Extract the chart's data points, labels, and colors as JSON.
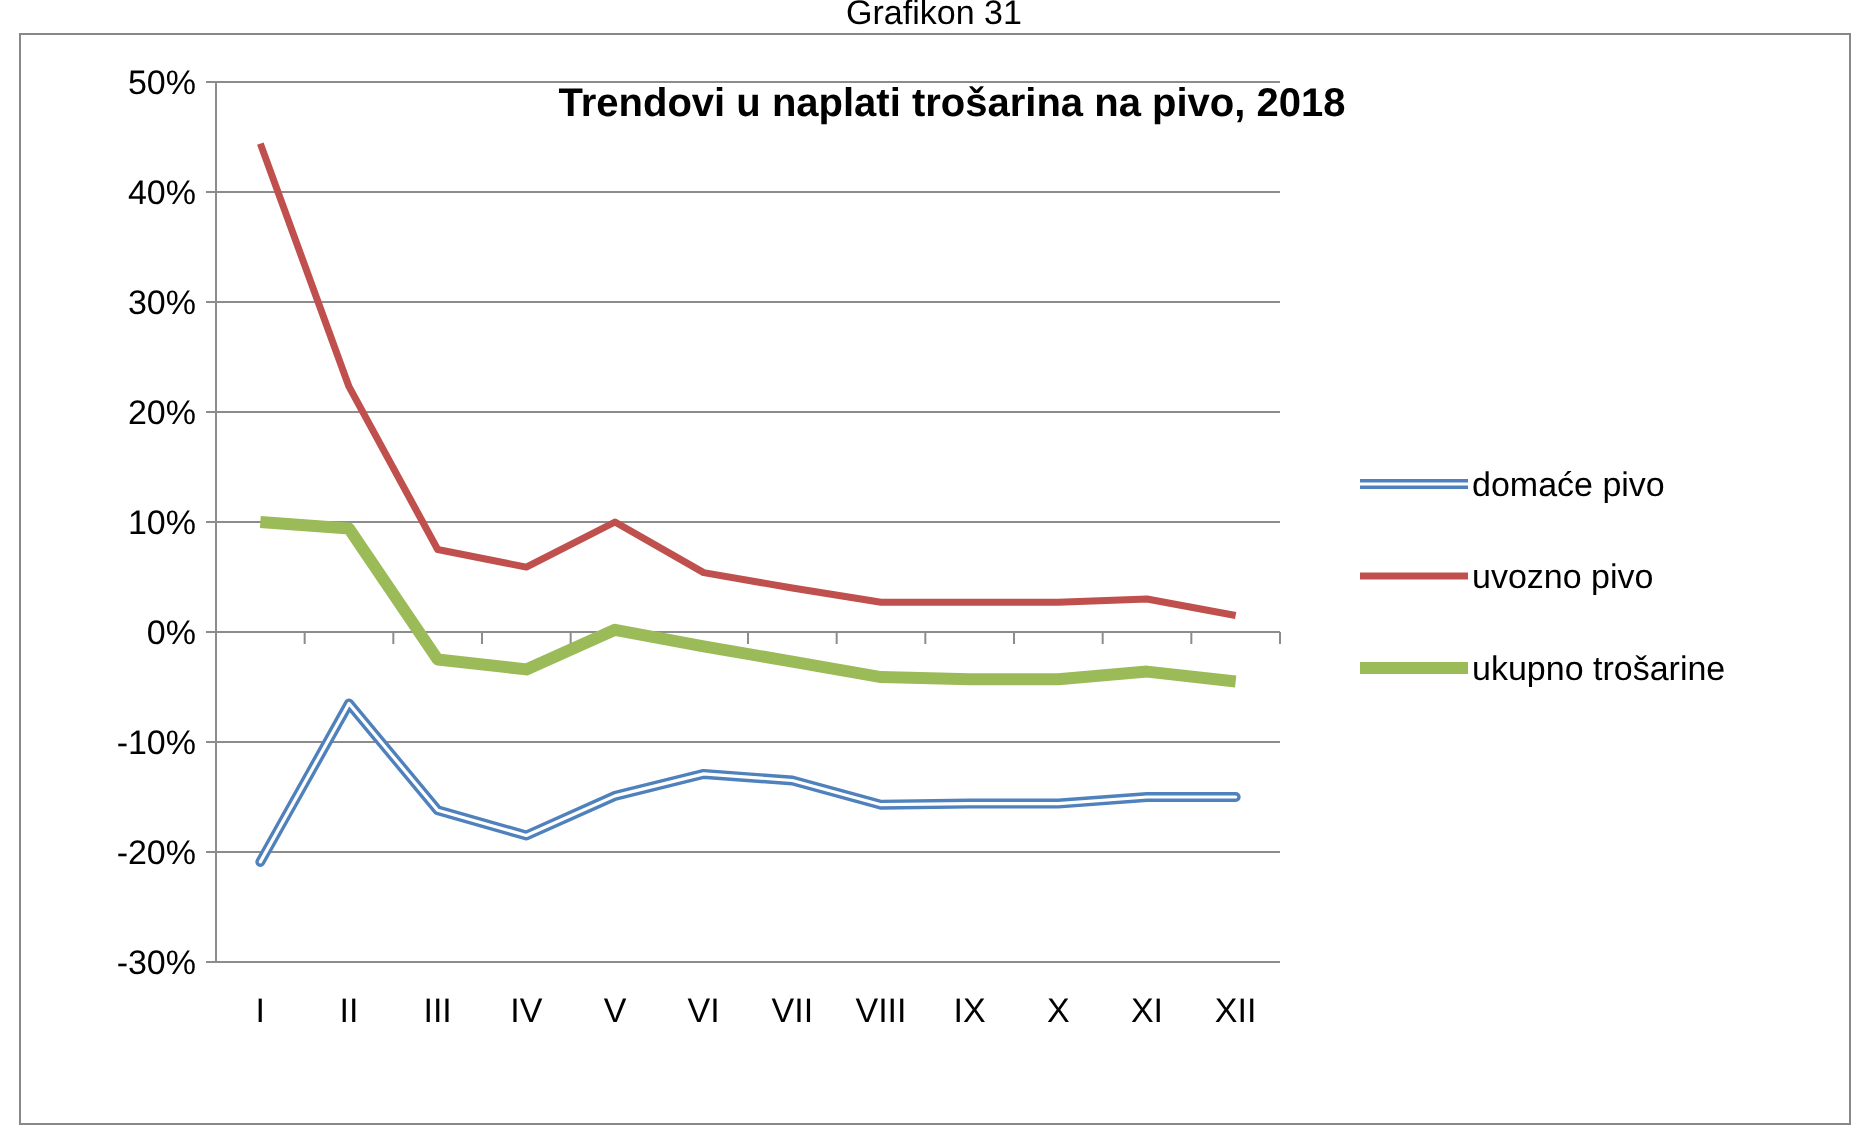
{
  "chart_data": {
    "type": "line",
    "title": "Trendovi u naplati trošarina na pivo, 2018",
    "annotations": [
      "Grafikon 31"
    ],
    "categories": [
      "I",
      "II",
      "III",
      "IV",
      "V",
      "VI",
      "VII",
      "VIII",
      "IX",
      "X",
      "XI",
      "XII"
    ],
    "ylim": [
      -0.3,
      0.5
    ],
    "yticks": [
      {
        "value": -0.3,
        "label": "-30%"
      },
      {
        "value": -0.2,
        "label": "-20%"
      },
      {
        "value": -0.1,
        "label": "-10%"
      },
      {
        "value": 0,
        "label": "0%"
      },
      {
        "value": 0.1,
        "label": "10%"
      },
      {
        "value": 0.2,
        "label": "20%"
      },
      {
        "value": 0.3,
        "label": "30%"
      },
      {
        "value": 0.4,
        "label": "40%"
      },
      {
        "value": 0.5,
        "label": "50%"
      }
    ],
    "grid": "y",
    "legend": "right",
    "marker": "none",
    "series": [
      {
        "name": "domaće pivo",
        "color": "#4f81bd",
        "values": [
          -0.209,
          -0.065,
          -0.162,
          -0.185,
          -0.149,
          -0.129,
          -0.135,
          -0.157,
          -0.156,
          -0.156,
          -0.15,
          -0.15
        ]
      },
      {
        "name": "uvozno pivo",
        "color": "#c0504d",
        "values": [
          0.444,
          0.223,
          0.075,
          0.059,
          0.1,
          0.054,
          0.04,
          0.027,
          0.027,
          0.027,
          0.03,
          0.015
        ]
      },
      {
        "name": "ukupno trošarine",
        "color": "#9bbb59",
        "values": [
          0.1,
          0.094,
          -0.025,
          -0.034,
          0.002,
          -0.013,
          -0.027,
          -0.041,
          -0.043,
          -0.043,
          -0.036,
          -0.045
        ]
      }
    ]
  }
}
